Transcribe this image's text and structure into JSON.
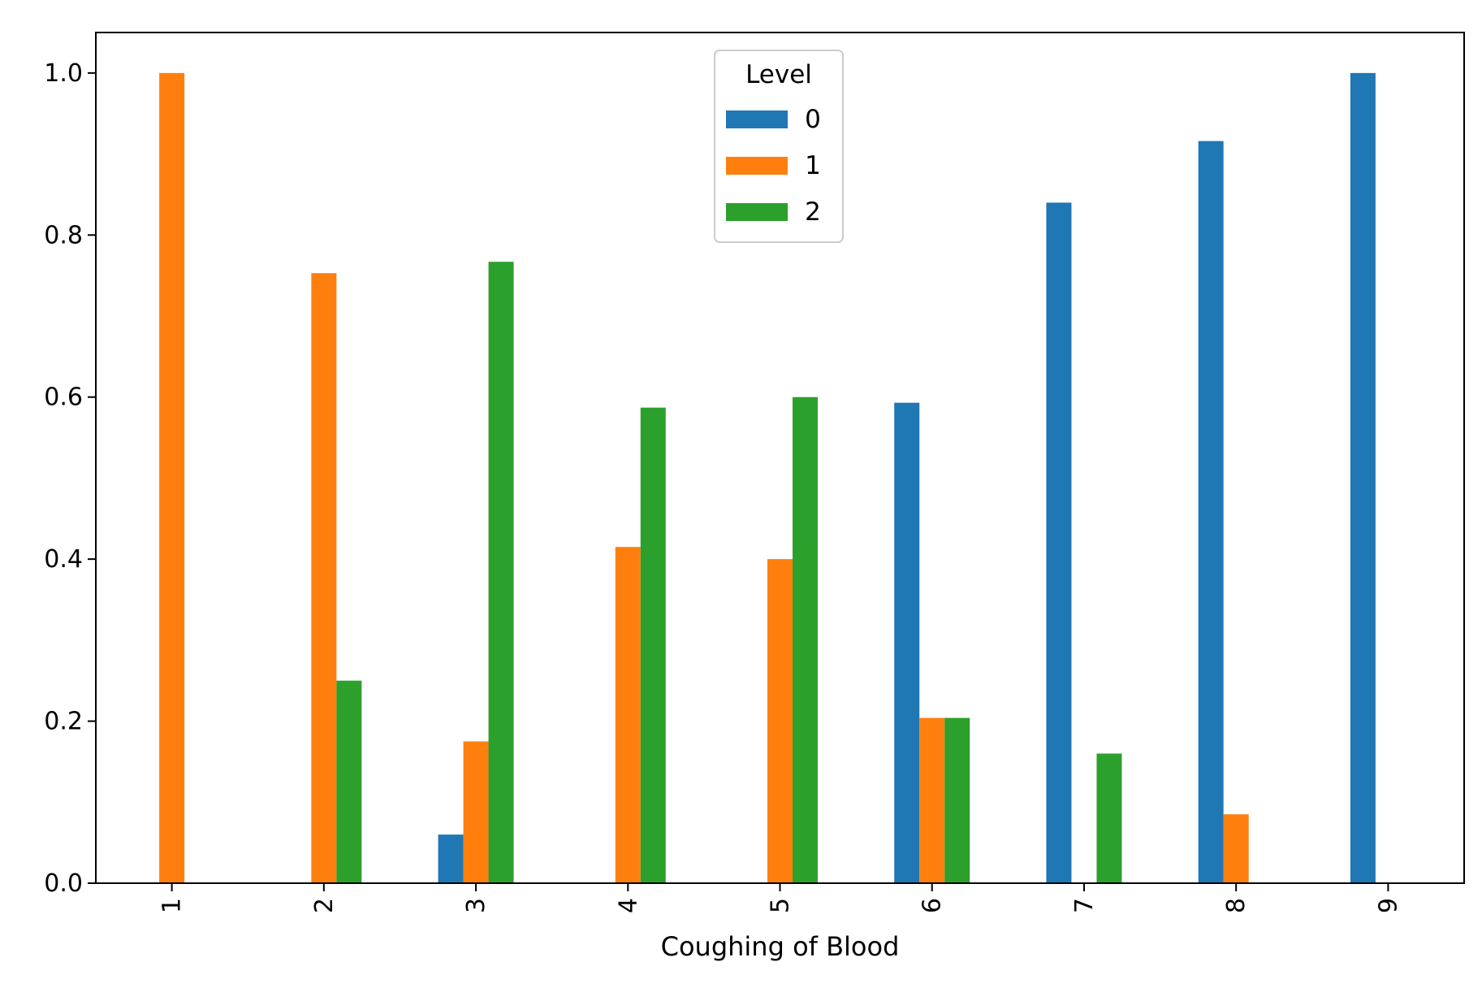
{
  "chart_data": {
    "type": "bar",
    "title": "",
    "xlabel": "Coughing of Blood",
    "ylabel": "",
    "categories": [
      "1",
      "2",
      "3",
      "4",
      "5",
      "6",
      "7",
      "8",
      "9"
    ],
    "ylim": [
      0,
      1.05
    ],
    "yticks": [
      0.0,
      0.2,
      0.4,
      0.6,
      0.8,
      1.0
    ],
    "ytick_labels": [
      "0.0",
      "0.2",
      "0.4",
      "0.6",
      "0.8",
      "1.0"
    ],
    "grid": false,
    "legend": {
      "title": "Level",
      "placement": "top-center"
    },
    "series": [
      {
        "name": "0",
        "color": "#1f77b4",
        "values": [
          0,
          0,
          0.06,
          0,
          0,
          0.593,
          0.84,
          0.916,
          1.0
        ]
      },
      {
        "name": "1",
        "color": "#ff7f0e",
        "values": [
          1.0,
          0.753,
          0.175,
          0.415,
          0.4,
          0.204,
          0,
          0.085,
          0
        ]
      },
      {
        "name": "2",
        "color": "#2ca02c",
        "values": [
          0,
          0.25,
          0.767,
          0.587,
          0.6,
          0.204,
          0.16,
          0,
          0
        ]
      }
    ]
  }
}
